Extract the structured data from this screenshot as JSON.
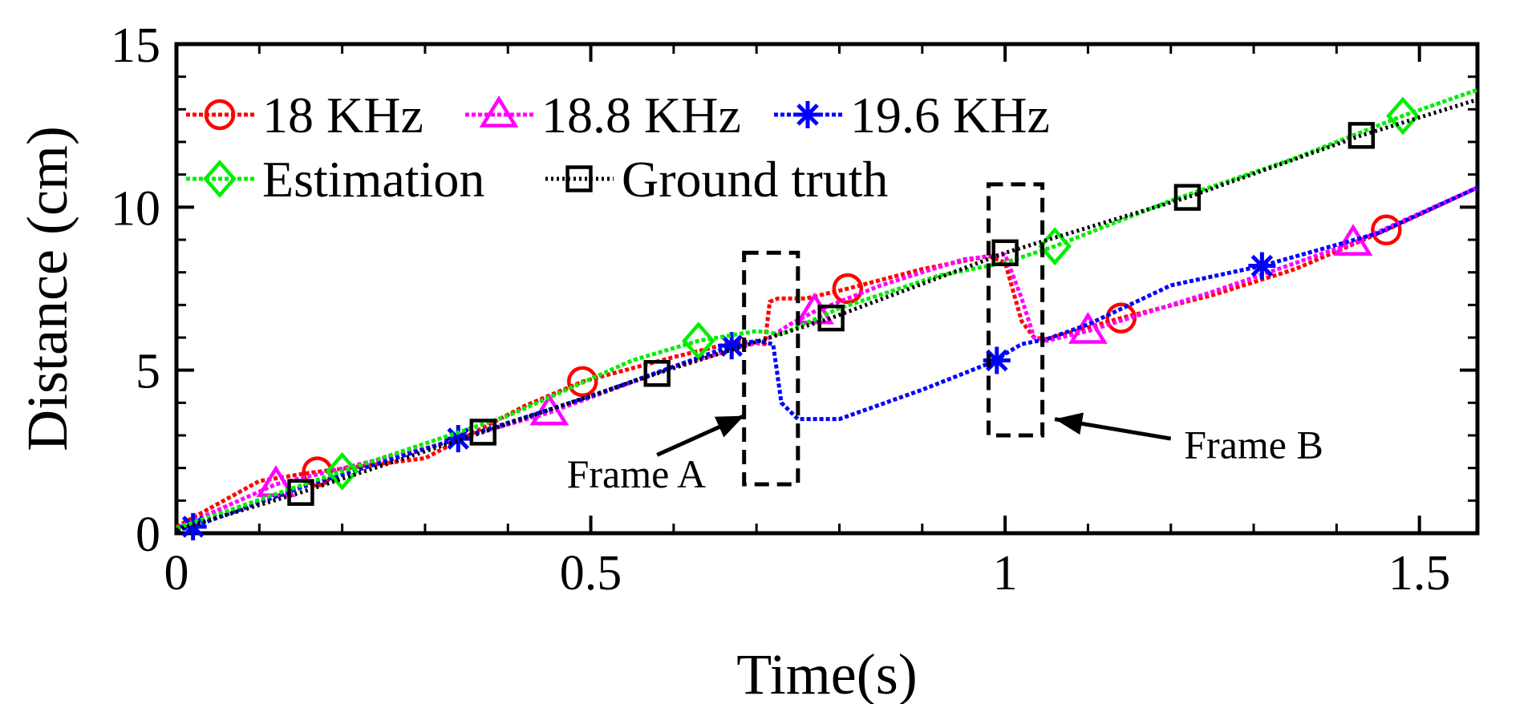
{
  "chart_data": {
    "type": "line",
    "title": "",
    "xlabel": "Time(s)",
    "ylabel": "Distance (cm)",
    "xlim": [
      0,
      1.57
    ],
    "ylim": [
      0,
      15
    ],
    "xticks": [
      {
        "value": 0,
        "label": "0"
      },
      {
        "value": 0.5,
        "label": "0.5"
      },
      {
        "value": 1,
        "label": "1"
      },
      {
        "value": 1.5,
        "label": "1.5"
      }
    ],
    "yticks": [
      {
        "value": 0,
        "label": "0"
      },
      {
        "value": 5,
        "label": "5"
      },
      {
        "value": 10,
        "label": "10"
      },
      {
        "value": 15,
        "label": "15"
      }
    ],
    "grid": false,
    "legend": "top-left",
    "series": [
      {
        "name": "18 KHz",
        "color": "#ff0000",
        "marker": "circle",
        "x": [
          0,
          0.1,
          0.16,
          0.3,
          0.42,
          0.49,
          0.6,
          0.68,
          0.71,
          0.716,
          0.726,
          0.76,
          0.81,
          0.9,
          0.98,
          1.0,
          1.02,
          1.035,
          1.05,
          1.14,
          1.25,
          1.35,
          1.46,
          1.57
        ],
        "y": [
          0.2,
          1.6,
          1.85,
          2.3,
          3.9,
          4.65,
          5.4,
          5.9,
          5.8,
          7.1,
          7.2,
          7.2,
          7.5,
          8.1,
          8.5,
          8.3,
          6.5,
          6.0,
          5.95,
          6.6,
          7.3,
          8.1,
          9.3,
          10.6
        ],
        "markers_x": [
          0.17,
          0.49,
          0.81,
          1.14,
          1.46
        ]
      },
      {
        "name": "18.8 KHz",
        "color": "#ff00ff",
        "marker": "triangle",
        "x": [
          0,
          0.12,
          0.3,
          0.45,
          0.6,
          0.68,
          0.71,
          0.74,
          0.77,
          0.85,
          0.95,
          1.0,
          1.02,
          1.035,
          1.05,
          1.1,
          1.25,
          1.42,
          1.57
        ],
        "y": [
          0.15,
          1.5,
          2.6,
          3.7,
          5.1,
          5.7,
          5.9,
          6.4,
          6.8,
          7.6,
          8.4,
          8.55,
          7.2,
          6.0,
          5.9,
          6.2,
          7.4,
          8.9,
          10.6
        ],
        "markers_x": [
          0.12,
          0.45,
          0.77,
          1.1,
          1.42
        ]
      },
      {
        "name": "19.6 KHz",
        "color": "#0000ff",
        "marker": "star",
        "x": [
          0,
          0.02,
          0.15,
          0.34,
          0.5,
          0.67,
          0.7,
          0.72,
          0.73,
          0.75,
          0.8,
          0.9,
          0.99,
          1.0,
          1.02,
          1.05,
          1.1,
          1.2,
          1.31,
          1.45,
          1.57
        ],
        "y": [
          0.1,
          0.2,
          1.4,
          2.9,
          4.2,
          5.75,
          5.9,
          5.8,
          4.0,
          3.5,
          3.5,
          4.4,
          5.3,
          5.5,
          5.8,
          5.95,
          6.4,
          7.6,
          8.2,
          9.2,
          10.6
        ],
        "markers_x": [
          0.02,
          0.34,
          0.67,
          0.99,
          1.31
        ]
      },
      {
        "name": "Estimation",
        "color": "#00ee00",
        "marker": "diamond",
        "x": [
          0,
          0.2,
          0.4,
          0.55,
          0.63,
          0.7,
          0.73,
          0.8,
          0.92,
          1.0,
          1.06,
          1.2,
          1.35,
          1.48,
          1.57
        ],
        "y": [
          0.15,
          1.9,
          3.6,
          5.3,
          5.9,
          6.2,
          6.1,
          6.9,
          7.9,
          8.3,
          8.8,
          10.2,
          11.5,
          12.8,
          13.6
        ],
        "markers_x": [
          0.2,
          0.63,
          1.06,
          1.48
        ]
      },
      {
        "name": "Ground truth",
        "color": "#000000",
        "marker": "square",
        "x": [
          0,
          0.15,
          0.37,
          0.58,
          0.79,
          1.0,
          1.22,
          1.43,
          1.57
        ],
        "y": [
          0.1,
          1.25,
          3.1,
          4.9,
          6.6,
          8.6,
          10.3,
          12.2,
          13.3
        ],
        "markers_x": [
          0.15,
          0.37,
          0.58,
          0.79,
          1.0,
          1.22,
          1.43
        ]
      }
    ],
    "annotations": [
      {
        "text": "Frame A",
        "box_x": [
          0.685,
          0.75
        ],
        "box_y": [
          1.5,
          8.6
        ],
        "label_x": 0.555,
        "label_y": 1.4,
        "arrow_from": [
          0.58,
          2.4
        ],
        "arrow_to": [
          0.685,
          3.6
        ]
      },
      {
        "text": "Frame B",
        "box_x": [
          0.98,
          1.045
        ],
        "box_y": [
          3.0,
          10.7
        ],
        "label_x": 1.3,
        "label_y": 2.3,
        "arrow_from": [
          1.2,
          2.9
        ],
        "arrow_to": [
          1.06,
          3.5
        ]
      }
    ]
  }
}
